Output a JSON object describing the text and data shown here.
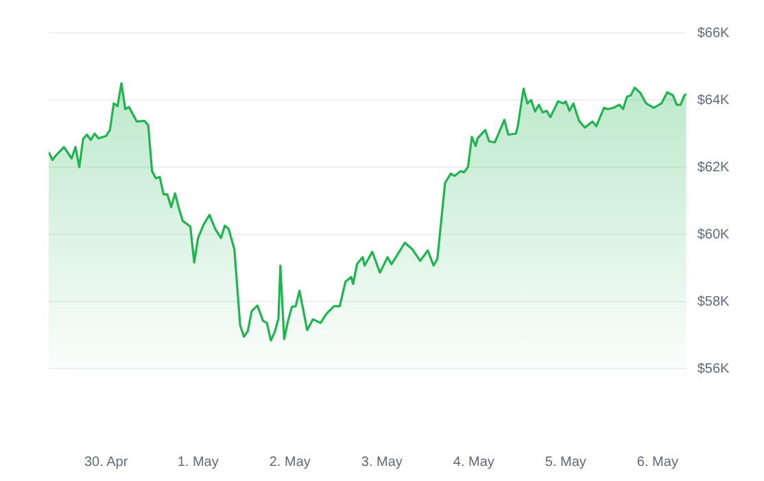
{
  "chart_data": {
    "type": "area",
    "x": [
      "--04-29T09:00",
      "--04-29T10:00",
      "--04-29T11:00",
      "--04-29T13:00",
      "--04-29T15:00",
      "--04-29T16:00",
      "--04-29T17:00",
      "--04-29T18:00",
      "--04-29T19:00",
      "--04-29T20:00",
      "--04-29T21:00",
      "--04-29T22:00",
      "--04-30T00:00",
      "--04-30T01:00",
      "--04-30T02:00",
      "--04-30T03:00",
      "--04-30T04:00",
      "--04-30T05:00",
      "--04-30T06:00",
      "--04-30T08:00",
      "--04-30T10:00",
      "--04-30T11:00",
      "--04-30T12:00",
      "--04-30T13:00",
      "--04-30T14:00",
      "--04-30T15:00",
      "--04-30T16:00",
      "--04-30T17:00",
      "--04-30T18:00",
      "--04-30T19:00",
      "--04-30T20:00",
      "--04-30T22:00",
      "--04-30T23:00",
      "--05-01T00:00",
      "--05-01T01:30",
      "--05-01T03:00",
      "--05-01T04:30",
      "--05-01T06:00",
      "--05-01T07:00",
      "--05-01T08:00",
      "--05-01T09:30",
      "--05-01T11:00",
      "--05-01T12:00",
      "--05-01T13:00",
      "--05-01T14:00",
      "--05-01T15:30",
      "--05-01T17:00",
      "--05-01T18:00",
      "--05-01T19:00",
      "--05-01T20:00",
      "--05-01T21:00",
      "--05-01T21:30",
      "--05-01T22:30",
      "--05-01T23:30",
      "--05-02T00:30",
      "--05-02T01:30",
      "--05-02T02:30",
      "--05-02T04:30",
      "--05-02T06:00",
      "--05-02T08:00",
      "--05-02T09:30",
      "--05-02T11:30",
      "--05-02T13:00",
      "--05-02T14:30",
      "--05-02T16:00",
      "--05-02T16:30",
      "--05-02T17:30",
      "--05-02T19:00",
      "--05-02T19:30",
      "--05-02T21:30",
      "--05-02T23:30",
      "--05-03T01:30",
      "--05-03T02:30",
      "--05-03T06:00",
      "--05-03T08:00",
      "--05-03T10:00",
      "--05-03T12:00",
      "--05-03T13:30",
      "--05-03T14:30",
      "--05-03T16:30",
      "--05-03T18:00",
      "--05-03T19:00",
      "--05-03T20:30",
      "--05-03T21:30",
      "--05-03T22:30",
      "--05-03T23:30",
      "--05-04T00:30",
      "--05-04T01:00",
      "--05-04T03:00",
      "--05-04T04:00",
      "--05-04T05:30",
      "--05-04T08:00",
      "--05-04T09:00",
      "--05-04T11:00",
      "--05-04T11:30",
      "--05-04T13:00",
      "--05-04T14:00",
      "--05-04T15:00",
      "--05-04T16:00",
      "--05-04T17:00",
      "--05-04T18:00",
      "--05-04T19:00",
      "--05-04T20:00",
      "--05-04T22:00",
      "--05-04T23:30",
      "--05-05T00:00",
      "--05-05T01:00",
      "--05-05T02:00",
      "--05-05T03:30",
      "--05-05T05:00",
      "--05-05T07:00",
      "--05-05T08:00",
      "--05-05T10:00",
      "--05-05T11:00",
      "--05-05T12:30",
      "--05-05T14:00",
      "--05-05T15:00",
      "--05-05T16:00",
      "--05-05T17:00",
      "--05-05T18:00",
      "--05-05T19:30",
      "--05-05T21:00",
      "--05-05T23:00",
      "--05-06T01:00",
      "--05-06T02:30",
      "--05-06T04:00",
      "--05-06T05:00",
      "--05-06T06:00",
      "--05-06T07:00",
      "--05-06T07:30"
    ],
    "series": [
      {
        "color": "#20b450",
        "values": [
          62450,
          62220,
          62360,
          62600,
          62260,
          62600,
          62000,
          62840,
          62970,
          62810,
          63000,
          62860,
          62930,
          63110,
          63900,
          63820,
          64500,
          63730,
          63790,
          63360,
          63380,
          63250,
          61880,
          61670,
          61710,
          61190,
          61190,
          60810,
          61220,
          60780,
          60400,
          60230,
          59160,
          59890,
          60300,
          60580,
          60160,
          59890,
          60260,
          60160,
          59550,
          57290,
          56950,
          57120,
          57710,
          57880,
          57420,
          57360,
          56840,
          57080,
          57490,
          59070,
          56880,
          57420,
          57840,
          57860,
          58320,
          57150,
          57470,
          57360,
          57630,
          57860,
          57860,
          58590,
          58730,
          58520,
          59110,
          59320,
          59070,
          59480,
          58860,
          59320,
          59110,
          59750,
          59550,
          59210,
          59520,
          59070,
          59270,
          61530,
          61810,
          61740,
          61880,
          61850,
          62010,
          62900,
          62630,
          62860,
          63110,
          62770,
          62740,
          63410,
          62970,
          63000,
          63220,
          64340,
          63900,
          64000,
          63660,
          63860,
          63630,
          63680,
          63490,
          63960,
          63900,
          63960,
          63680,
          63900,
          63380,
          63180,
          63360,
          63220,
          63770,
          63730,
          63770,
          63860,
          63730,
          64100,
          64140,
          64370,
          64210,
          63900,
          63770,
          63900,
          64230,
          64140,
          63860,
          63860,
          64140,
          64180
        ]
      }
    ],
    "xlim": [
      "--04-29T09:00",
      "--05-06T07:30"
    ],
    "xticks": [
      {
        "value": "--04-30",
        "label": "30. Apr"
      },
      {
        "value": "--05-01",
        "label": "1. May"
      },
      {
        "value": "--05-02",
        "label": "2. May"
      },
      {
        "value": "--05-03",
        "label": "3. May"
      },
      {
        "value": "--05-04",
        "label": "4. May"
      },
      {
        "value": "--05-05",
        "label": "5. May"
      },
      {
        "value": "--05-06",
        "label": "6. May"
      }
    ],
    "ylim": [
      56000,
      66000
    ],
    "yticks": [
      {
        "value": 56000,
        "label": "$56K"
      },
      {
        "value": 58000,
        "label": "$58K"
      },
      {
        "value": 60000,
        "label": "$60K"
      },
      {
        "value": 62000,
        "label": "$62K"
      },
      {
        "value": 64000,
        "label": "$64K"
      },
      {
        "value": 66000,
        "label": "$66K"
      }
    ],
    "grid": "y",
    "legend": false,
    "marker": "none",
    "line_style": "solid"
  }
}
